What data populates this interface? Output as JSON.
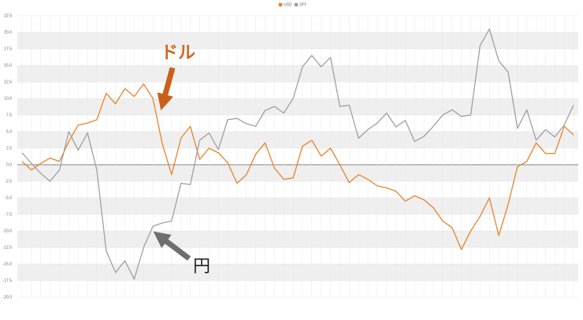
{
  "chart_data": {
    "type": "line",
    "categories": [
      null,
      null,
      null,
      null,
      null,
      null,
      null,
      null,
      null,
      null,
      null,
      null,
      null,
      null,
      null,
      null,
      null,
      null,
      null,
      null,
      null,
      null,
      null,
      null,
      null,
      null,
      null,
      null,
      null,
      null,
      null,
      null,
      null,
      null,
      null,
      null,
      null,
      null,
      null,
      null,
      null,
      null,
      null,
      null,
      null,
      null,
      null,
      null,
      null,
      null,
      null,
      null,
      null,
      null,
      null,
      null,
      null,
      null,
      null,
      null
    ],
    "series": [
      {
        "name": "USD",
        "color": "#e8832a",
        "values": [
          0.5,
          -0.8,
          0.2,
          1,
          0.5,
          3.5,
          6,
          6.3,
          6.8,
          10.8,
          9.2,
          11.5,
          10.3,
          12.2,
          10,
          3.2,
          -1.5,
          4,
          5.8,
          0.8,
          2.5,
          1.8,
          0.3,
          -2.8,
          -1.5,
          1.6,
          3.3,
          -0.5,
          -2.2,
          -2,
          2.8,
          3.7,
          1.3,
          2.5,
          0,
          -2.7,
          -1.5,
          -2.2,
          -3.2,
          -3.5,
          -4,
          -5.5,
          -4.7,
          -5.3,
          -6.5,
          -8.5,
          -9.5,
          -12.8,
          -10,
          -7.8,
          -5,
          -10.7,
          -6,
          -0.3,
          0.5,
          3.3,
          1.7,
          1.7,
          5.8,
          4.5
        ]
      },
      {
        "name": "JPY",
        "color": "#a0a0a0",
        "values": [
          1.8,
          0.2,
          -1.3,
          -2.5,
          -0.8,
          5,
          2.2,
          4.8,
          -0.8,
          -13,
          -16.3,
          -14.5,
          -17.3,
          -12.5,
          -9.3,
          -8.8,
          -8.5,
          -2.8,
          -3,
          3.7,
          4.8,
          2.3,
          6.8,
          7,
          6.2,
          5.8,
          8.2,
          8.8,
          7.8,
          10,
          14.8,
          16.5,
          14.8,
          16.2,
          8.8,
          9,
          4,
          5.3,
          6.3,
          7.8,
          5.7,
          6.7,
          3.5,
          4.3,
          5.8,
          7.5,
          8.3,
          7.3,
          7.5,
          18,
          20.5,
          15.7,
          14,
          5.5,
          8.3,
          3.7,
          5.3,
          4.2,
          6,
          9
        ]
      }
    ],
    "ylim": [
      -20,
      22.5
    ],
    "yticks": [
      {
        "value": 22.5,
        "label": "22.5"
      },
      {
        "value": 20,
        "label": "20.0"
      },
      {
        "value": 17.5,
        "label": "17.5"
      },
      {
        "value": 15,
        "label": "15.0"
      },
      {
        "value": 12.5,
        "label": "12.5"
      },
      {
        "value": 10,
        "label": "10.0"
      },
      {
        "value": 7.5,
        "label": "7.5"
      },
      {
        "value": 5,
        "label": "5.0"
      },
      {
        "value": 2.5,
        "label": "2.5"
      },
      {
        "value": 0,
        "label": "0.0"
      },
      {
        "value": -2.5,
        "label": "-2.5"
      },
      {
        "value": -5,
        "label": "-5.0"
      },
      {
        "value": -7.5,
        "label": "-7.5"
      },
      {
        "value": -10,
        "label": "-10.0"
      },
      {
        "value": -12.5,
        "label": "-12.5"
      },
      {
        "value": -15,
        "label": "-15.0"
      },
      {
        "value": -17.5,
        "label": "-17.5"
      },
      {
        "value": -20,
        "label": "-20.0"
      }
    ],
    "grid": true,
    "legend": "top",
    "annotations": [
      "ドル",
      "円"
    ]
  }
}
